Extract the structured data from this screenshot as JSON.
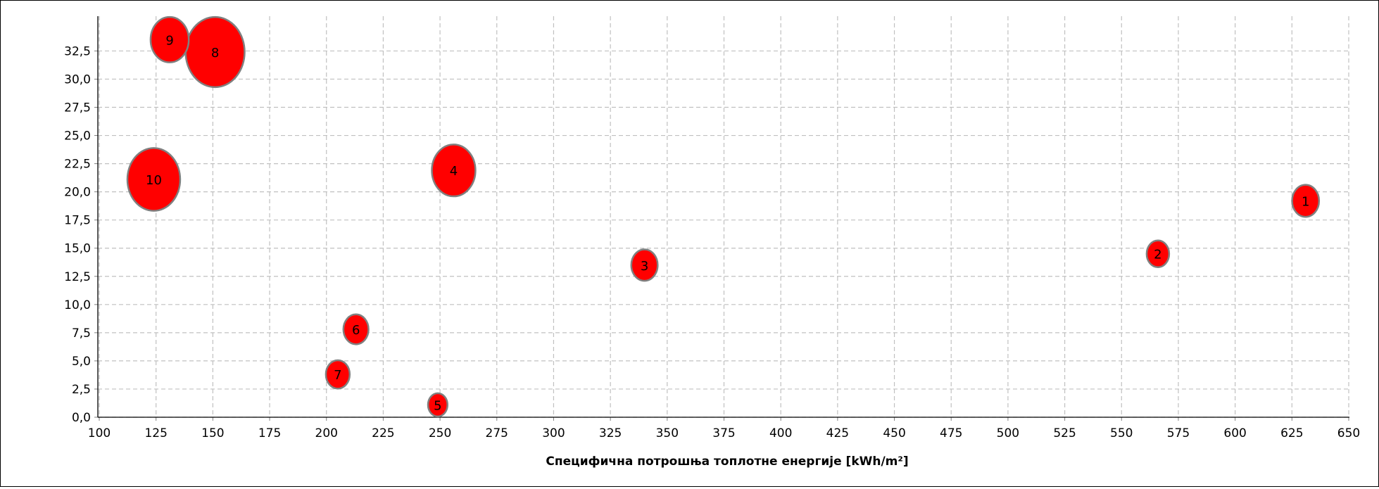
{
  "chart_data": {
    "type": "scatter",
    "xlabel": "Специфична потрошња топлотне енергије [kWh/m²]",
    "ylabel": "",
    "xlim": [
      100,
      650
    ],
    "ylim": [
      0,
      33.4
    ],
    "x_ticks": [
      "100",
      "125",
      "150",
      "175",
      "200",
      "225",
      "250",
      "275",
      "300",
      "325",
      "350",
      "375",
      "400",
      "425",
      "450",
      "475",
      "500",
      "525",
      "550",
      "575",
      "600",
      "625",
      "650"
    ],
    "y_ticks": [
      "0,0",
      "2,5",
      "5,0",
      "7,5",
      "10,0",
      "12,5",
      "15,0",
      "17,5",
      "20,0",
      "22,5",
      "25,0",
      "27,5",
      "30,0",
      "32,5"
    ],
    "grid": true,
    "bubble_color": "#ff0000",
    "bubble_edge_color": "#808080",
    "points": [
      {
        "label": "1",
        "x": 631,
        "y": 19.2,
        "size": 2.3
      },
      {
        "label": "2",
        "x": 566,
        "y": 14.5,
        "size": 1.6
      },
      {
        "label": "3",
        "x": 340,
        "y": 13.5,
        "size": 2.2
      },
      {
        "label": "4",
        "x": 256,
        "y": 21.9,
        "size": 6.0
      },
      {
        "label": "5",
        "x": 249,
        "y": 1.1,
        "size": 1.2
      },
      {
        "label": "6",
        "x": 213,
        "y": 7.8,
        "size": 2.0
      },
      {
        "label": "7",
        "x": 205,
        "y": 3.8,
        "size": 1.8
      },
      {
        "label": "8",
        "x": 151,
        "y": 32.4,
        "size": 11.0
      },
      {
        "label": "9",
        "x": 131,
        "y": 33.5,
        "size": 4.6
      },
      {
        "label": "10",
        "x": 124,
        "y": 21.1,
        "size": 8.8
      }
    ]
  }
}
